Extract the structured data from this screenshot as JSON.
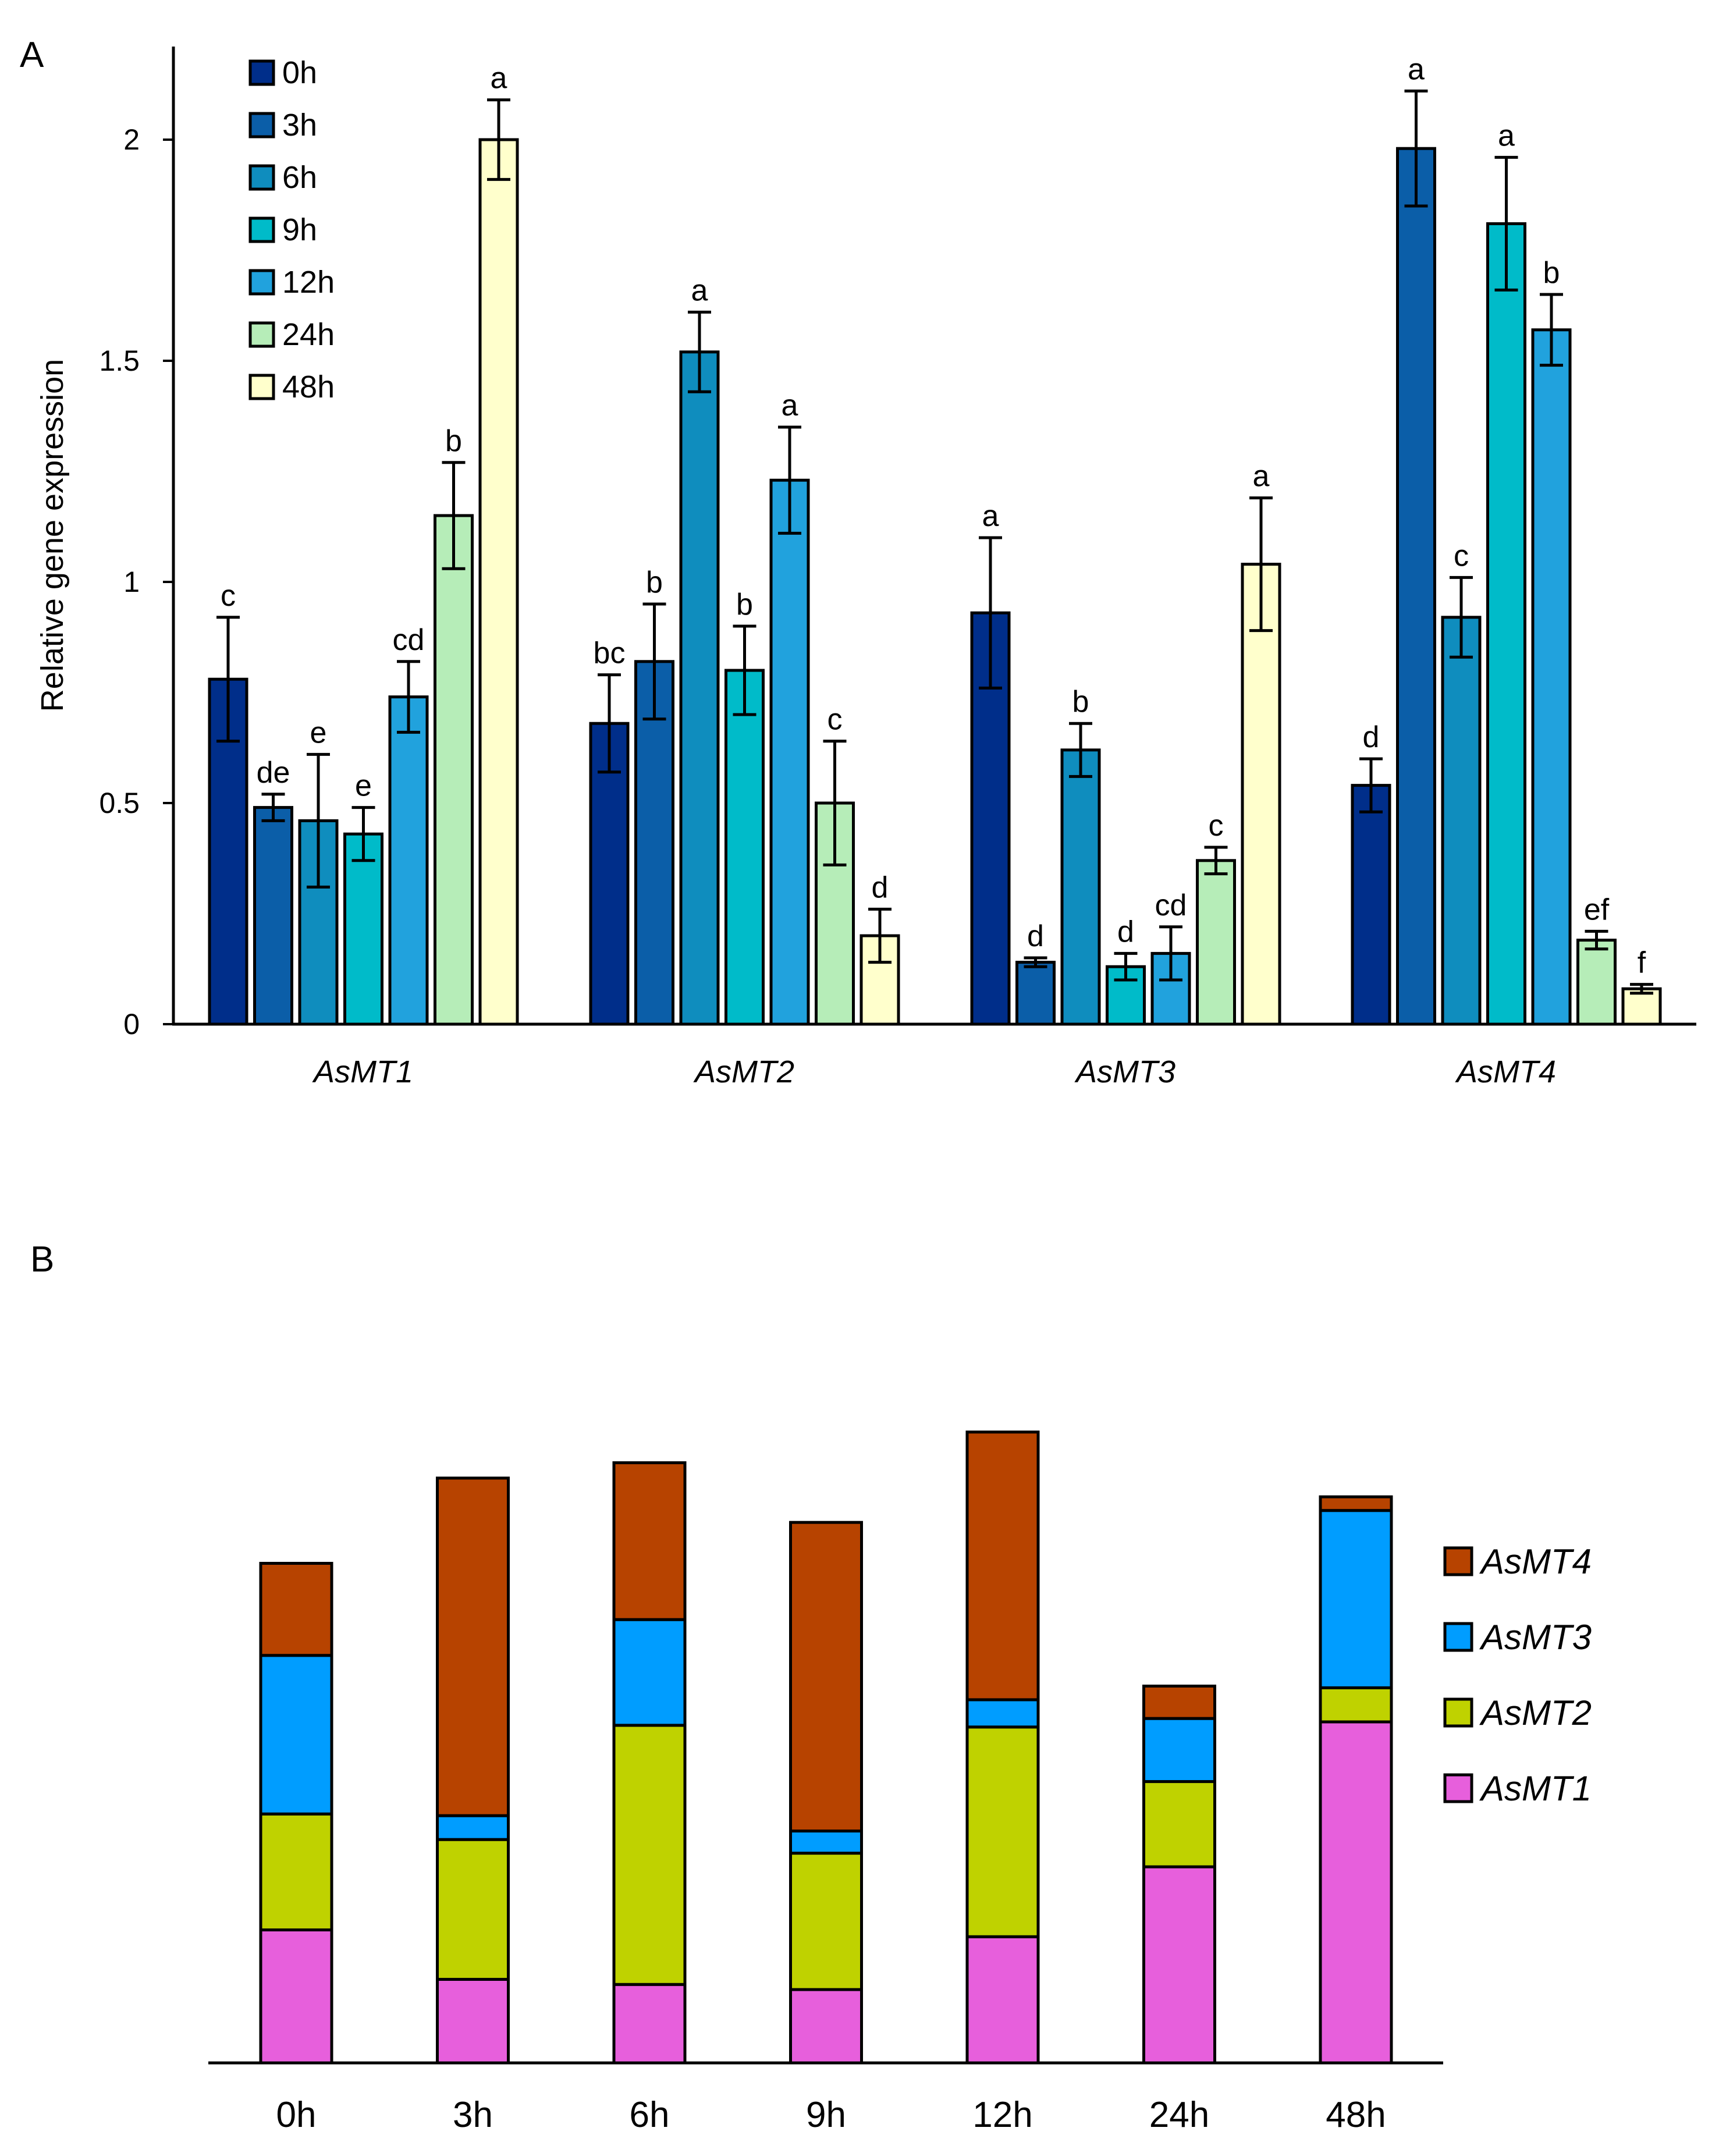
{
  "chart_data": [
    {
      "panel": "A",
      "type": "bar",
      "ylabel": "Relative gene expression",
      "xlabel": "",
      "ylim": [
        0,
        2.2
      ],
      "yticks": [
        0,
        0.5,
        1,
        1.5,
        2
      ],
      "ytick_labels": [
        "0",
        "0.5",
        "1",
        "1.5",
        "2"
      ],
      "categories": [
        "AsMT1",
        "AsMT2",
        "AsMT3",
        "AsMT4"
      ],
      "legend_position": "top-left",
      "series": [
        {
          "name": "0h",
          "color": "#002e8a",
          "values": [
            0.78,
            0.68,
            0.93,
            0.54
          ],
          "errors": [
            0.14,
            0.11,
            0.17,
            0.06
          ],
          "letters": [
            "c",
            "bc",
            "a",
            "d"
          ]
        },
        {
          "name": "3h",
          "color": "#0b5ea8",
          "values": [
            0.49,
            0.82,
            0.14,
            1.98
          ],
          "errors": [
            0.03,
            0.13,
            0.01,
            0.13
          ],
          "letters": [
            "de",
            "b",
            "d",
            "a"
          ]
        },
        {
          "name": "6h",
          "color": "#0f8dbe",
          "values": [
            0.46,
            1.52,
            0.62,
            0.92
          ],
          "errors": [
            0.15,
            0.09,
            0.06,
            0.09
          ],
          "letters": [
            "e",
            "a",
            "b",
            "c"
          ]
        },
        {
          "name": "9h",
          "color": "#00bbc9",
          "values": [
            0.43,
            0.8,
            0.13,
            1.81
          ],
          "errors": [
            0.06,
            0.1,
            0.03,
            0.15
          ],
          "letters": [
            "e",
            "b",
            "d",
            "a"
          ]
        },
        {
          "name": "12h",
          "color": "#21a2dd",
          "values": [
            0.74,
            1.23,
            0.16,
            1.57
          ],
          "errors": [
            0.08,
            0.12,
            0.06,
            0.08
          ],
          "letters": [
            "cd",
            "a",
            "cd",
            "b"
          ]
        },
        {
          "name": "24h",
          "color": "#b6edb8",
          "values": [
            1.15,
            0.5,
            0.37,
            0.19
          ],
          "errors": [
            0.12,
            0.14,
            0.03,
            0.02
          ],
          "letters": [
            "b",
            "c",
            "c",
            "ef"
          ]
        },
        {
          "name": "48h",
          "color": "#ffffcc",
          "values": [
            2.0,
            0.2,
            1.04,
            0.08
          ],
          "errors": [
            0.09,
            0.06,
            0.15,
            0.01
          ],
          "letters": [
            "a",
            "d",
            "a",
            "f"
          ]
        }
      ]
    },
    {
      "panel": "B",
      "type": "bar",
      "stacked": true,
      "ylabel": "",
      "xlabel": "",
      "ylim": [
        0,
        4.5
      ],
      "categories": [
        "0h",
        "3h",
        "6h",
        "9h",
        "12h",
        "24h",
        "48h"
      ],
      "legend_position": "right",
      "series": [
        {
          "name": "AsMT1",
          "color": "#e75fdc",
          "values": [
            0.78,
            0.49,
            0.46,
            0.43,
            0.74,
            1.15,
            2.0
          ]
        },
        {
          "name": "AsMT2",
          "color": "#bfd200",
          "values": [
            0.68,
            0.82,
            1.52,
            0.8,
            1.23,
            0.5,
            0.2
          ]
        },
        {
          "name": "AsMT3",
          "color": "#009dff",
          "values": [
            0.93,
            0.14,
            0.62,
            0.13,
            0.16,
            0.37,
            1.04
          ]
        },
        {
          "name": "AsMT4",
          "color": "#b74300",
          "values": [
            0.54,
            1.98,
            0.92,
            1.81,
            1.57,
            0.19,
            0.08
          ]
        }
      ]
    }
  ],
  "panels": {
    "a_label": "A",
    "b_label": "B"
  }
}
